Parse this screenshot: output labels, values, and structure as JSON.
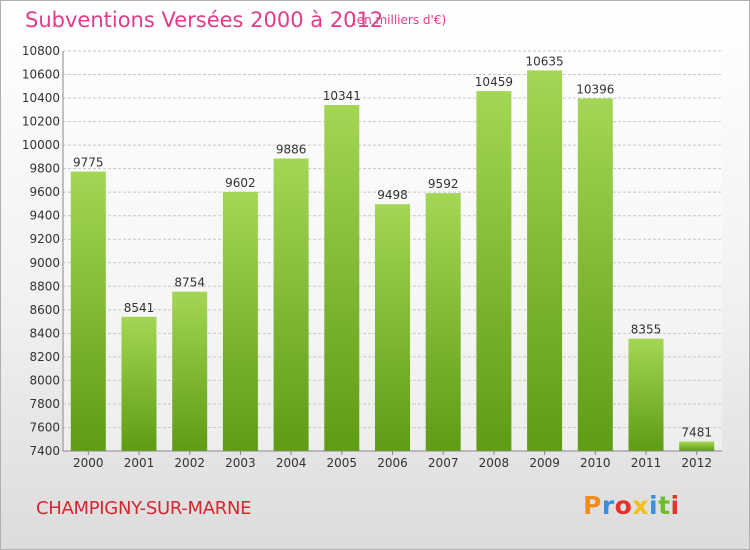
{
  "header": {
    "title": "Subventions Versées 2000 à 2012",
    "subtitle": "(en milliers d'€)"
  },
  "footer": {
    "city": "CHAMPIGNY-SUR-MARNE",
    "logo_text": "Proxiti",
    "logo_colors": [
      "#f08c1e",
      "#3a8fd8",
      "#e9302a",
      "#f2c018",
      "#3a8fd8",
      "#6bbf2a",
      "#e9302a"
    ]
  },
  "colors": {
    "bar_top": "#a3d654",
    "bar_bottom": "#5e9c14",
    "grid": "#c8c8c8",
    "axis_text": "#333333",
    "title": "#e23b8a",
    "city": "#d6262f"
  },
  "chart_data": {
    "type": "bar",
    "title": "Subventions Versées 2000 à 2012",
    "subtitle": "(en milliers d'€)",
    "categories": [
      "2000",
      "2001",
      "2002",
      "2003",
      "2004",
      "2005",
      "2006",
      "2007",
      "2008",
      "2009",
      "2010",
      "2011",
      "2012"
    ],
    "values": [
      9775,
      8541,
      8754,
      9602,
      9886,
      10341,
      9498,
      9592,
      10459,
      10635,
      10396,
      8355,
      7481
    ],
    "ylim": [
      7400,
      10800
    ],
    "yticks": [
      7400,
      7600,
      7800,
      8000,
      8200,
      8400,
      8600,
      8800,
      9000,
      9200,
      9400,
      9600,
      9800,
      10000,
      10200,
      10400,
      10600,
      10800
    ],
    "grid": true,
    "data_labels": true,
    "legend": false
  }
}
